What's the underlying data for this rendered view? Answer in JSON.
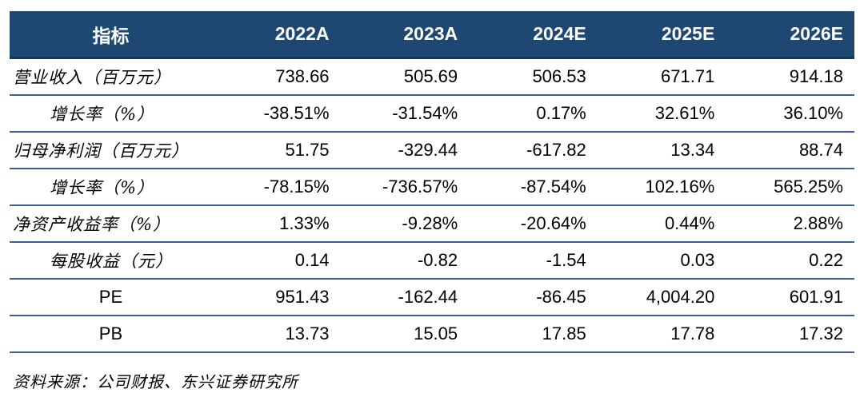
{
  "table": {
    "header": {
      "indicator_label": "指标",
      "columns": [
        "2022A",
        "2023A",
        "2024E",
        "2025E",
        "2026E"
      ]
    },
    "rows": [
      {
        "label": "营业收入（百万元）",
        "values": [
          "738.66",
          "505.69",
          "506.53",
          "671.71",
          "914.18"
        ]
      },
      {
        "label": "增长率（%）",
        "values": [
          "-38.51%",
          "-31.54%",
          "0.17%",
          "32.61%",
          "36.10%"
        ]
      },
      {
        "label": "归母净利润（百万元）",
        "values": [
          "51.75",
          "-329.44",
          "-617.82",
          "13.34",
          "88.74"
        ]
      },
      {
        "label": "增长率（%）",
        "values": [
          "-78.15%",
          "-736.57%",
          "-87.54%",
          "102.16%",
          "565.25%"
        ]
      },
      {
        "label": "净资产收益率（%）",
        "values": [
          "1.33%",
          "-9.28%",
          "-20.64%",
          "0.44%",
          "2.88%"
        ]
      },
      {
        "label": "每股收益（元）",
        "values": [
          "0.14",
          "-0.82",
          "-1.54",
          "0.03",
          "0.22"
        ]
      },
      {
        "label": "PE",
        "values": [
          "951.43",
          "-162.44",
          "-86.45",
          "4,004.20",
          "601.91"
        ]
      },
      {
        "label": "PB",
        "values": [
          "13.73",
          "15.05",
          "17.85",
          "17.78",
          "17.32"
        ]
      }
    ]
  },
  "footer": {
    "source_text": "资料来源：公司财报、东兴证券研究所"
  },
  "colors": {
    "header_bg": "#1E4872",
    "header_text": "#FFFFFF",
    "header_border": "#16365C",
    "row_border": "#3A5F94",
    "body_text": "#000000"
  }
}
